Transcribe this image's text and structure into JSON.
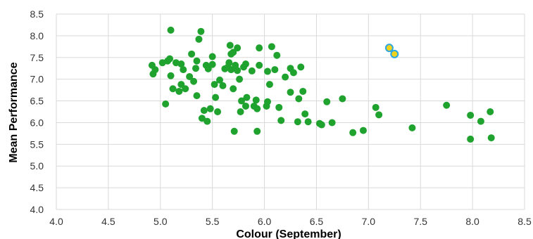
{
  "chart_data": {
    "type": "scatter",
    "title": "",
    "xlabel": "Colour (September)",
    "ylabel": "Mean Performance",
    "xlim": [
      4.0,
      8.5
    ],
    "ylim": [
      4.0,
      8.5
    ],
    "x_ticks": [
      "4.0",
      "4.5",
      "5.0",
      "5.5",
      "6.0",
      "6.5",
      "7.0",
      "7.5",
      "8.0",
      "8.5"
    ],
    "y_ticks": [
      "4.0",
      "4.5",
      "5.0",
      "5.5",
      "6.0",
      "6.5",
      "7.0",
      "7.5",
      "8.0",
      "8.5"
    ],
    "grid": true,
    "colors": {
      "main": "#1FA22E",
      "highlight_fill": "#F2D21B",
      "highlight_stroke": "#2AA7E0",
      "grid": "#D9D9D9"
    },
    "series": [
      {
        "values": [
          [
            4.92,
            7.32
          ],
          [
            4.93,
            7.12
          ],
          [
            4.95,
            7.22
          ],
          [
            5.02,
            7.38
          ],
          [
            5.05,
            6.43
          ],
          [
            5.07,
            7.42
          ],
          [
            5.1,
            8.13
          ],
          [
            5.09,
            7.47
          ],
          [
            5.1,
            7.08
          ],
          [
            5.12,
            6.78
          ],
          [
            5.15,
            7.38
          ],
          [
            5.18,
            6.72
          ],
          [
            5.2,
            6.88
          ],
          [
            5.2,
            7.35
          ],
          [
            5.22,
            7.22
          ],
          [
            5.24,
            6.78
          ],
          [
            5.28,
            7.06
          ],
          [
            5.3,
            7.58
          ],
          [
            5.32,
            6.95
          ],
          [
            5.34,
            7.25
          ],
          [
            5.35,
            6.62
          ],
          [
            5.35,
            7.42
          ],
          [
            5.37,
            7.92
          ],
          [
            5.39,
            8.1
          ],
          [
            5.4,
            6.1
          ],
          [
            5.42,
            6.28
          ],
          [
            5.44,
            7.32
          ],
          [
            5.45,
            6.03
          ],
          [
            5.46,
            7.24
          ],
          [
            5.48,
            6.32
          ],
          [
            5.5,
            7.34
          ],
          [
            5.5,
            7.52
          ],
          [
            5.52,
            6.88
          ],
          [
            5.53,
            6.58
          ],
          [
            5.55,
            6.25
          ],
          [
            5.57,
            6.98
          ],
          [
            5.6,
            6.85
          ],
          [
            5.62,
            7.24
          ],
          [
            5.65,
            7.28
          ],
          [
            5.66,
            7.38
          ],
          [
            5.67,
            7.78
          ],
          [
            5.68,
            7.58
          ],
          [
            5.68,
            7.22
          ],
          [
            5.7,
            6.78
          ],
          [
            5.7,
            7.62
          ],
          [
            5.71,
            5.8
          ],
          [
            5.72,
            7.32
          ],
          [
            5.74,
            7.2
          ],
          [
            5.74,
            7.72
          ],
          [
            5.76,
            7.0
          ],
          [
            5.77,
            6.25
          ],
          [
            5.78,
            6.5
          ],
          [
            5.8,
            7.28
          ],
          [
            5.82,
            6.38
          ],
          [
            5.82,
            7.35
          ],
          [
            5.83,
            6.58
          ],
          [
            5.88,
            7.19
          ],
          [
            5.9,
            6.38
          ],
          [
            5.92,
            6.52
          ],
          [
            5.93,
            6.32
          ],
          [
            5.93,
            5.8
          ],
          [
            5.95,
            7.32
          ],
          [
            5.95,
            7.72
          ],
          [
            6.02,
            6.38
          ],
          [
            6.03,
            6.48
          ],
          [
            6.03,
            7.18
          ],
          [
            6.05,
            6.88
          ],
          [
            6.07,
            7.75
          ],
          [
            6.1,
            7.22
          ],
          [
            6.12,
            7.55
          ],
          [
            6.14,
            6.35
          ],
          [
            6.16,
            6.05
          ],
          [
            6.2,
            7.05
          ],
          [
            6.25,
            6.7
          ],
          [
            6.25,
            7.25
          ],
          [
            6.28,
            7.15
          ],
          [
            6.32,
            6.02
          ],
          [
            6.33,
            6.55
          ],
          [
            6.35,
            7.28
          ],
          [
            6.37,
            6.72
          ],
          [
            6.39,
            6.2
          ],
          [
            6.42,
            6.02
          ],
          [
            6.53,
            5.98
          ],
          [
            6.55,
            5.95
          ],
          [
            6.6,
            6.48
          ],
          [
            6.65,
            6.0
          ],
          [
            6.75,
            6.55
          ],
          [
            6.85,
            5.77
          ],
          [
            6.95,
            5.82
          ],
          [
            7.07,
            6.35
          ],
          [
            7.1,
            6.18
          ],
          [
            7.42,
            5.88
          ],
          [
            7.75,
            6.4
          ],
          [
            7.98,
            6.17
          ],
          [
            7.98,
            5.62
          ],
          [
            8.08,
            6.03
          ],
          [
            8.17,
            6.25
          ],
          [
            8.18,
            5.65
          ]
        ]
      },
      {
        "values": [
          [
            7.2,
            7.72
          ],
          [
            7.25,
            7.58
          ]
        ]
      }
    ]
  }
}
